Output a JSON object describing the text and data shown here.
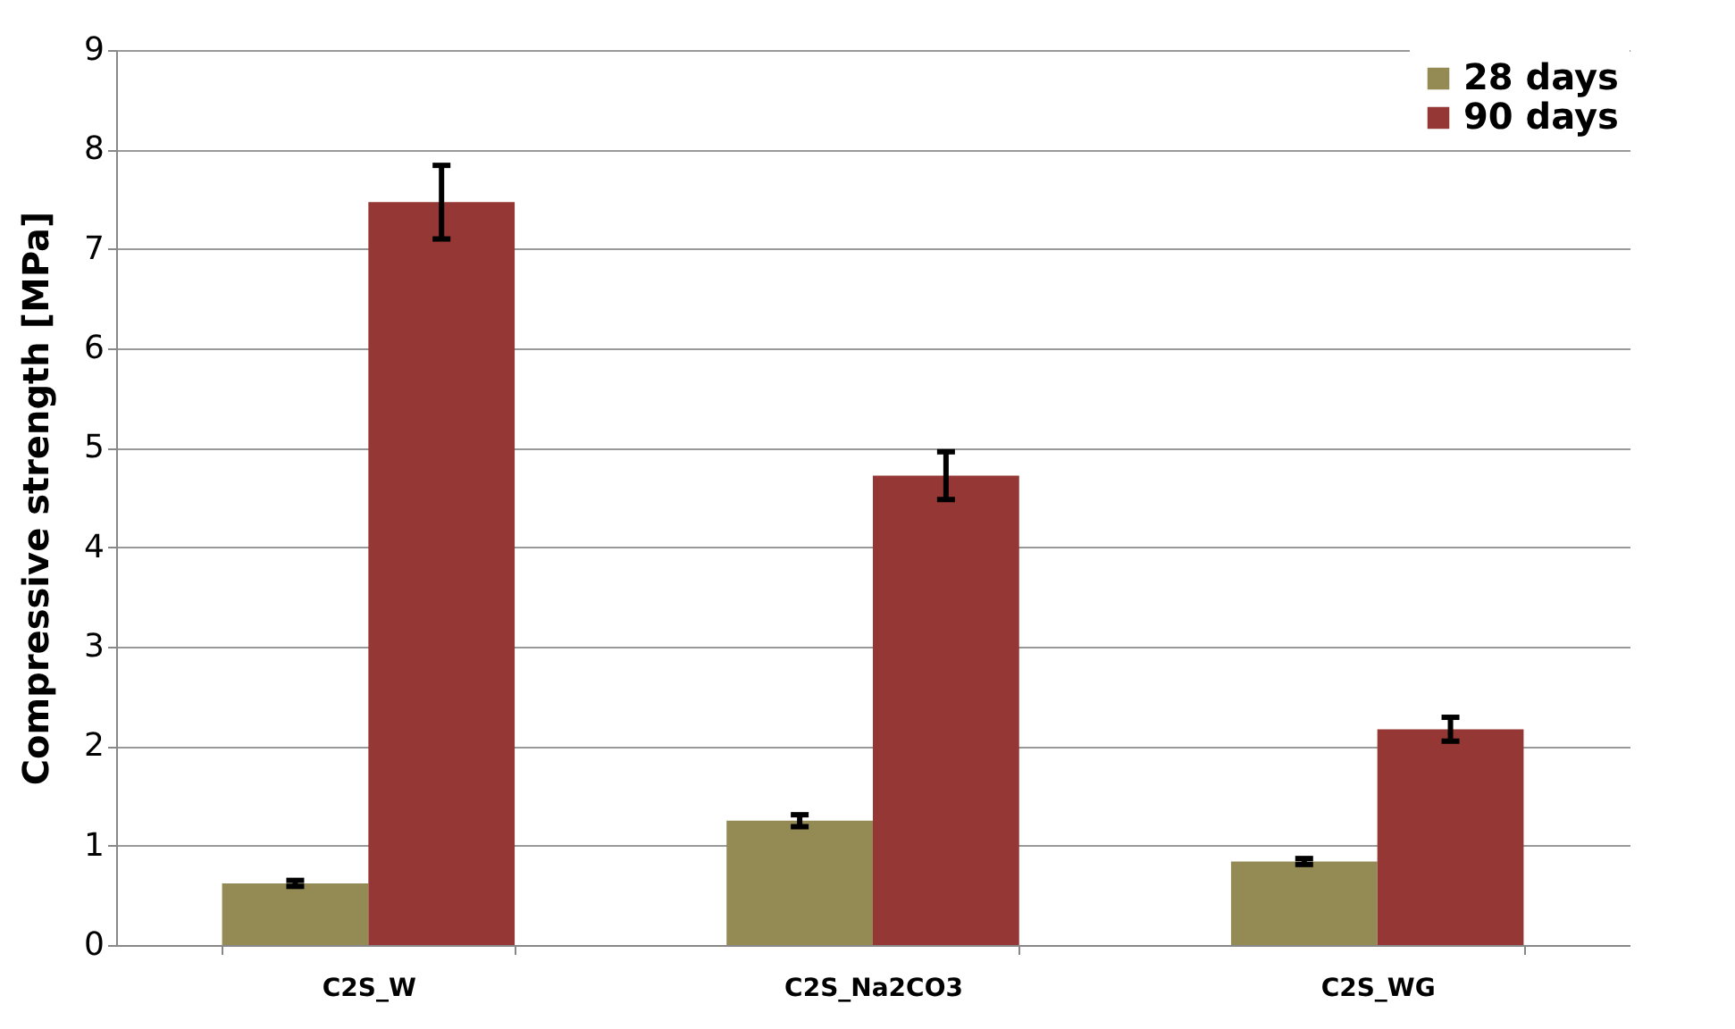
{
  "chart_data": {
    "type": "bar",
    "ylabel": "Compressive strength [MPa]",
    "categories": [
      "C2S_W",
      "C2S_Na2CO3",
      "C2S_WG"
    ],
    "series": [
      {
        "name": "28 days",
        "color": "#948a54",
        "values": [
          0.62,
          1.25,
          0.84
        ],
        "errors": [
          0.03,
          0.06,
          0.03
        ]
      },
      {
        "name": "90 days",
        "color": "#953735",
        "values": [
          7.47,
          4.72,
          2.17
        ],
        "errors": [
          0.37,
          0.24,
          0.12
        ]
      }
    ],
    "ylim": [
      0,
      9
    ],
    "yticks": [
      0,
      1,
      2,
      3,
      4,
      5,
      6,
      7,
      8,
      9
    ],
    "grid": "y",
    "legend": "top right"
  }
}
